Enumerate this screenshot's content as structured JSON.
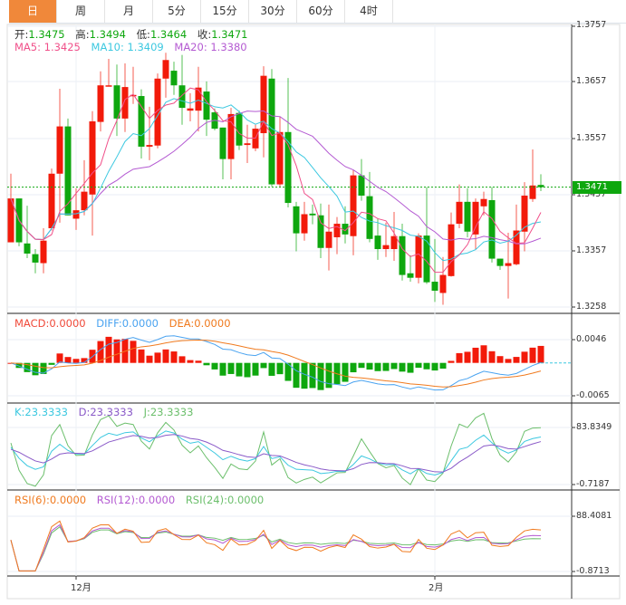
{
  "tabs": [
    {
      "label": "日",
      "active": true
    },
    {
      "label": "周"
    },
    {
      "label": "月"
    },
    {
      "label": "5分"
    },
    {
      "label": "15分"
    },
    {
      "label": "30分"
    },
    {
      "label": "60分"
    },
    {
      "label": "4时"
    }
  ],
  "ohlc_legend": {
    "open_label": "开:",
    "open": "1.3475",
    "high_label": "高:",
    "high": "1.3494",
    "low_label": "低:",
    "low": "1.3464",
    "close_label": "收:",
    "close": "1.3471"
  },
  "ma_legend": {
    "ma5": "MA5: 1.3425",
    "ma10": "MA10: 1.3409",
    "ma20": "MA20: 1.3380"
  },
  "macd_legend": {
    "macd": "MACD:0.0000",
    "diff": "DIFF:0.0000",
    "dea": "DEA:0.0000"
  },
  "kdj_legend": {
    "k": "K:23.3333",
    "d": "D:23.3333",
    "j": "J:23.3333"
  },
  "rsi_legend": {
    "rsi6": "RSI(6):0.0000",
    "rsi12": "RSI(12):0.0000",
    "rsi24": "RSI(24):0.0000"
  },
  "price_axis": [
    "1.3757",
    "1.3657",
    "1.3557",
    "1.3457",
    "1.3357",
    "1.3258"
  ],
  "current_price": "1.3471",
  "macd_axis": [
    "0.0046",
    "-0.0065"
  ],
  "kdj_axis": [
    "83.8349",
    "-0.7187"
  ],
  "rsi_axis": [
    "88.4081",
    "-0.8713"
  ],
  "x_labels": [
    {
      "label": "12月",
      "index": 8
    },
    {
      "label": "2月",
      "index": 52
    }
  ],
  "colors": {
    "up": "#f21a0a",
    "down": "#0ea70e",
    "ma5": "#f0508a",
    "ma10": "#3cc8e0",
    "ma20": "#b45ad2",
    "accent": "#f0883a",
    "diff": "#4aa3f0",
    "dea": "#f07a1e"
  },
  "chart_data": {
    "type": "candlestick",
    "price_range": [
      1.3258,
      1.3757
    ],
    "candles": [
      [
        1.3373,
        1.3495,
        1.3373,
        1.3451
      ],
      [
        1.3451,
        1.3451,
        1.3366,
        1.3373
      ],
      [
        1.3371,
        1.3438,
        1.3345,
        1.3353
      ],
      [
        1.3352,
        1.3361,
        1.3318,
        1.3337
      ],
      [
        1.3336,
        1.3398,
        1.3318,
        1.3376
      ],
      [
        1.3398,
        1.3504,
        1.3394,
        1.3495
      ],
      [
        1.3495,
        1.3646,
        1.3408,
        1.3579
      ],
      [
        1.3579,
        1.3593,
        1.3421,
        1.3421
      ],
      [
        1.3415,
        1.3469,
        1.3395,
        1.343
      ],
      [
        1.343,
        1.3519,
        1.3421,
        1.3463
      ],
      [
        1.3458,
        1.3606,
        1.3385,
        1.3588
      ],
      [
        1.3587,
        1.3677,
        1.357,
        1.3652
      ],
      [
        1.3651,
        1.3699,
        1.3651,
        1.3652
      ],
      [
        1.3652,
        1.3689,
        1.3562,
        1.3593
      ],
      [
        1.3593,
        1.3691,
        1.3569,
        1.3649
      ],
      [
        1.3633,
        1.3685,
        1.3619,
        1.3635
      ],
      [
        1.3633,
        1.3645,
        1.3522,
        1.3543
      ],
      [
        1.3543,
        1.3614,
        1.3519,
        1.3546
      ],
      [
        1.3545,
        1.3673,
        1.354,
        1.3664
      ],
      [
        1.3664,
        1.371,
        1.363,
        1.3697
      ],
      [
        1.3678,
        1.3694,
        1.3635,
        1.3652
      ],
      [
        1.3652,
        1.3706,
        1.3582,
        1.3612
      ],
      [
        1.3607,
        1.3638,
        1.3588,
        1.3611
      ],
      [
        1.3607,
        1.3685,
        1.357,
        1.3648
      ],
      [
        1.3641,
        1.3659,
        1.3562,
        1.3591
      ],
      [
        1.3604,
        1.3611,
        1.3572,
        1.3575
      ],
      [
        1.3577,
        1.3577,
        1.3485,
        1.3521
      ],
      [
        1.3521,
        1.3612,
        1.3485,
        1.3601
      ],
      [
        1.3603,
        1.3607,
        1.3537,
        1.3545
      ],
      [
        1.3546,
        1.3582,
        1.3514,
        1.3549
      ],
      [
        1.354,
        1.3582,
        1.3535,
        1.3575
      ],
      [
        1.3567,
        1.3686,
        1.3524,
        1.3669
      ],
      [
        1.3664,
        1.3681,
        1.3472,
        1.3476
      ],
      [
        1.3476,
        1.3596,
        1.3471,
        1.3569
      ],
      [
        1.3569,
        1.3665,
        1.3435,
        1.3443
      ],
      [
        1.3437,
        1.3445,
        1.3357,
        1.3389
      ],
      [
        1.3389,
        1.3445,
        1.3376,
        1.3423
      ],
      [
        1.3424,
        1.344,
        1.3405,
        1.3421
      ],
      [
        1.3421,
        1.3442,
        1.3345,
        1.3363
      ],
      [
        1.3363,
        1.344,
        1.3323,
        1.3392
      ],
      [
        1.3382,
        1.3418,
        1.3352,
        1.3406
      ],
      [
        1.3406,
        1.3437,
        1.3371,
        1.3387
      ],
      [
        1.3384,
        1.3501,
        1.335,
        1.3492
      ],
      [
        1.3492,
        1.3521,
        1.3447,
        1.3456
      ],
      [
        1.3455,
        1.3498,
        1.3373,
        1.3379
      ],
      [
        1.3385,
        1.3415,
        1.3342,
        1.3361
      ],
      [
        1.3361,
        1.3408,
        1.3347,
        1.3368
      ],
      [
        1.3361,
        1.3427,
        1.334,
        1.3384
      ],
      [
        1.3384,
        1.3406,
        1.3305,
        1.3315
      ],
      [
        1.3318,
        1.335,
        1.3303,
        1.331
      ],
      [
        1.331,
        1.3389,
        1.33,
        1.3385
      ],
      [
        1.3385,
        1.3471,
        1.3299,
        1.3302
      ],
      [
        1.3303,
        1.3379,
        1.3267,
        1.3287
      ],
      [
        1.3283,
        1.3347,
        1.3262,
        1.3315
      ],
      [
        1.3313,
        1.3426,
        1.3312,
        1.3405
      ],
      [
        1.3406,
        1.3476,
        1.3398,
        1.3445
      ],
      [
        1.3445,
        1.3469,
        1.3382,
        1.3392
      ],
      [
        1.3387,
        1.3451,
        1.3361,
        1.3445
      ],
      [
        1.3437,
        1.3463,
        1.3421,
        1.345
      ],
      [
        1.3448,
        1.3471,
        1.3337,
        1.3344
      ],
      [
        1.3344,
        1.3344,
        1.3324,
        1.3331
      ],
      [
        1.3331,
        1.339,
        1.3273,
        1.3336
      ],
      [
        1.3334,
        1.344,
        1.3332,
        1.3394
      ],
      [
        1.3392,
        1.348,
        1.3357,
        1.3456
      ],
      [
        1.345,
        1.3538,
        1.3445,
        1.3474
      ],
      [
        1.3475,
        1.3494,
        1.3464,
        1.3471
      ]
    ],
    "macd_range": [
      -0.0065,
      0.0046
    ],
    "kdj_range": [
      -0.7187,
      83.8349
    ],
    "rsi_range": [
      -0.8713,
      88.4081
    ]
  }
}
